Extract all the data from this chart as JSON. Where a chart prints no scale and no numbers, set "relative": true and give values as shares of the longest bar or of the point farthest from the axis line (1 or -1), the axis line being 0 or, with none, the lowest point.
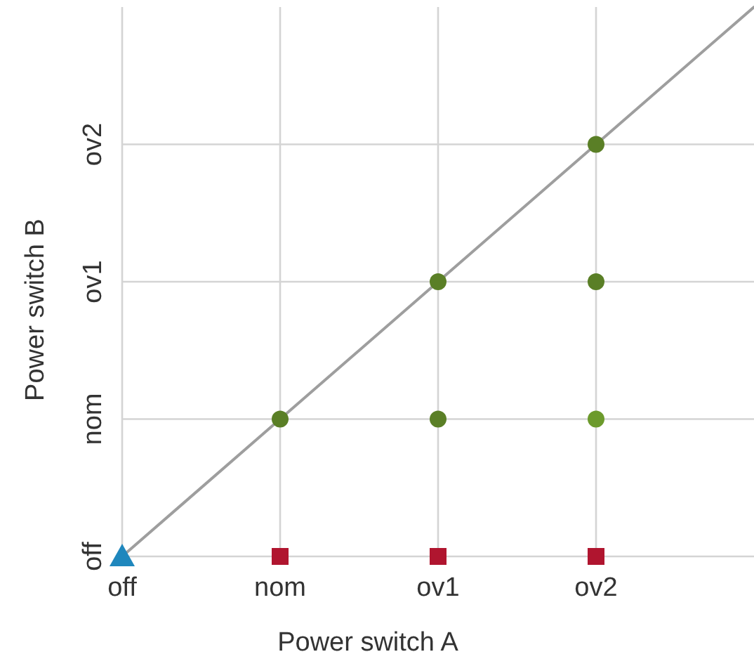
{
  "chart_data": {
    "type": "scatter",
    "xlabel": "Power switch A",
    "ylabel": "Power switch B",
    "categories": [
      "off",
      "nom",
      "ov1",
      "ov2",
      null
    ],
    "y_categories": [
      null,
      "ov2",
      "ov1",
      "nom",
      "off"
    ],
    "relative": true,
    "grid": true,
    "series": [
      {
        "type": "line",
        "color": "#9e9e9e",
        "marker": "none",
        "values": [
          0,
          0.25,
          0.5,
          0.75,
          1
        ]
      },
      {
        "color": "#b0152f",
        "marker": "square",
        "x": [
          "nom",
          "ov1",
          "ov2"
        ],
        "values": [
          0,
          0,
          0
        ]
      },
      {
        "colors": [
          "#5a7f26",
          "#5a7f26",
          "#6c9a2c",
          "#5a7f26",
          "#5a7f26",
          "#5a7f26"
        ],
        "marker": "circle",
        "x": [
          "nom",
          "ov1",
          "ov2",
          "ov1",
          "ov2",
          "ov2"
        ],
        "values": [
          0.25,
          0.25,
          0.25,
          0.5,
          0.5,
          0.75
        ]
      },
      {
        "color": "#1f87bd",
        "marker": "triangle",
        "x": [
          "off"
        ],
        "values": [
          0
        ]
      }
    ]
  }
}
